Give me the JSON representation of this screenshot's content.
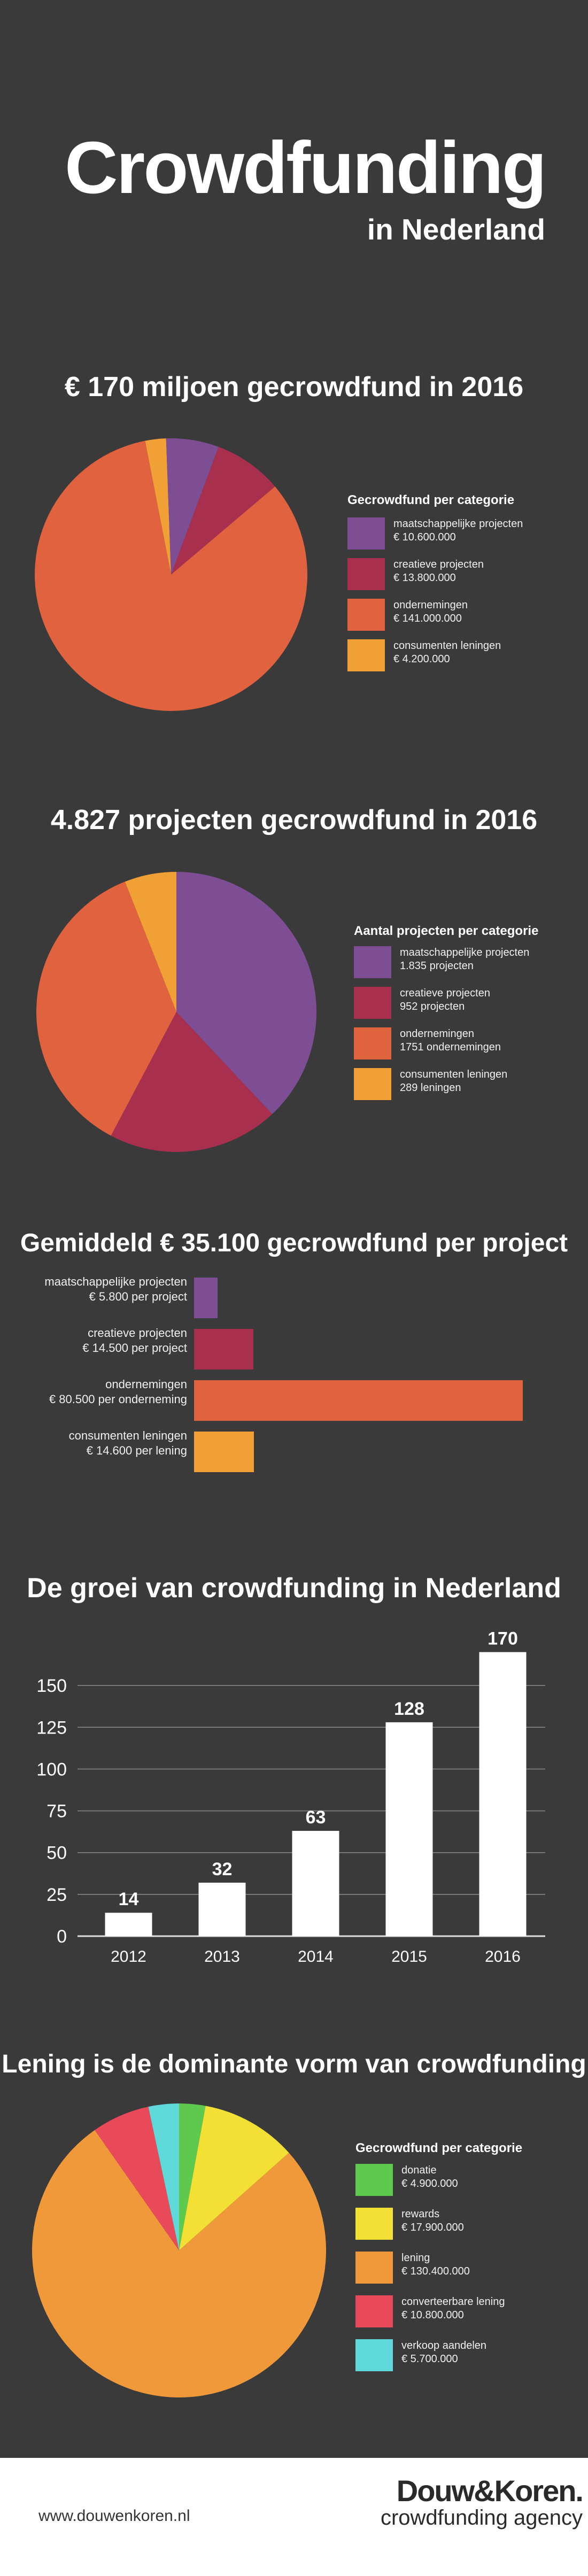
{
  "header": {
    "title": "Crowdfunding",
    "subtitle": "in Nederland"
  },
  "sections": {
    "pie1": {
      "heading": "€ 170 miljoen gecrowdfund in 2016"
    },
    "pie2": {
      "heading": "4.827 projecten gecrowdfund in 2016"
    },
    "bars": {
      "heading": "Gemiddeld € 35.100 gecrowdfund per project"
    },
    "growth": {
      "heading": "De groei van crowdfunding in Nederland"
    },
    "pie3": {
      "heading": "Lening is de dominante vorm van crowdfunding"
    }
  },
  "footer": {
    "url": "www.douwenkoren.nl",
    "brand": "Douw&Koren.",
    "tagline": "crowdfunding agency"
  },
  "colors": {
    "background": "#3a3a3a",
    "purple": "#7e4e94",
    "crimson": "#a8304e",
    "orange_red": "#e0623e",
    "amber": "#f0a035",
    "green": "#5dc94d",
    "yellow": "#f2e035",
    "orange": "#f0993a",
    "red": "#e84a5a",
    "cyan": "#5ed8d8"
  },
  "chart_data": [
    {
      "type": "pie",
      "legend_title": "Gecrowdfund per categorie",
      "legend_position": "right",
      "slices": [
        {
          "label": "maatschappelijke projecten",
          "value_label": "€ 10.600.000",
          "value": 10600000,
          "color": "#7e4e94"
        },
        {
          "label": "creatieve projecten",
          "value_label": "€ 13.800.000",
          "value": 13800000,
          "color": "#a8304e"
        },
        {
          "label": "ondernemingen",
          "value_label": "€ 141.000.000",
          "value": 141000000,
          "color": "#e0623e"
        },
        {
          "label": "consumenten leningen",
          "value_label": "€ 4.200.000",
          "value": 4200000,
          "color": "#f0a035"
        }
      ]
    },
    {
      "type": "pie",
      "legend_title": "Aantal projecten per categorie",
      "legend_position": "right",
      "slices": [
        {
          "label": "maatschappelijke projecten",
          "value_label": "1.835 projecten",
          "value": 1835,
          "color": "#7e4e94"
        },
        {
          "label": "creatieve projecten",
          "value_label": "952 projecten",
          "value": 952,
          "color": "#a8304e"
        },
        {
          "label": "ondernemingen",
          "value_label": "1751 ondernemingen",
          "value": 1751,
          "color": "#e0623e"
        },
        {
          "label": "consumenten leningen",
          "value_label": "289 leningen",
          "value": 289,
          "color": "#f0a035"
        }
      ]
    },
    {
      "type": "bar",
      "orientation": "horizontal",
      "categories": [
        "maatschappelijke projecten",
        "creatieve projecten",
        "ondernemingen",
        "consumenten leningen"
      ],
      "value_labels": [
        "€ 5.800 per project",
        "€ 14.500 per project",
        "€ 80.500 per onderneming",
        "€ 14.600 per lening"
      ],
      "values": [
        5800,
        14500,
        80500,
        14600
      ],
      "colors": [
        "#7e4e94",
        "#a8304e",
        "#e0623e",
        "#f0a035"
      ]
    },
    {
      "type": "bar",
      "categories": [
        "2012",
        "2013",
        "2014",
        "2015",
        "2016"
      ],
      "values": [
        14,
        32,
        63,
        128,
        170
      ],
      "ylim": [
        0,
        175
      ],
      "yticks": [
        0,
        25,
        50,
        75,
        100,
        125,
        150
      ],
      "grid": true
    },
    {
      "type": "pie",
      "legend_title": "Gecrowdfund per categorie",
      "legend_position": "right",
      "slices": [
        {
          "label": "donatie",
          "value_label": "€ 4.900.000",
          "value": 4900000,
          "color": "#5dc94d"
        },
        {
          "label": "rewards",
          "value_label": "€ 17.900.000",
          "value": 17900000,
          "color": "#f2e035"
        },
        {
          "label": "lening",
          "value_label": "€ 130.400.000",
          "value": 130400000,
          "color": "#f0993a"
        },
        {
          "label": "converteerbare lening",
          "value_label": "€ 10.800.000",
          "value": 10800000,
          "color": "#e84a5a"
        },
        {
          "label": "verkoop aandelen",
          "value_label": "€ 5.700.000",
          "value": 5700000,
          "color": "#5ed8d8"
        }
      ]
    }
  ]
}
